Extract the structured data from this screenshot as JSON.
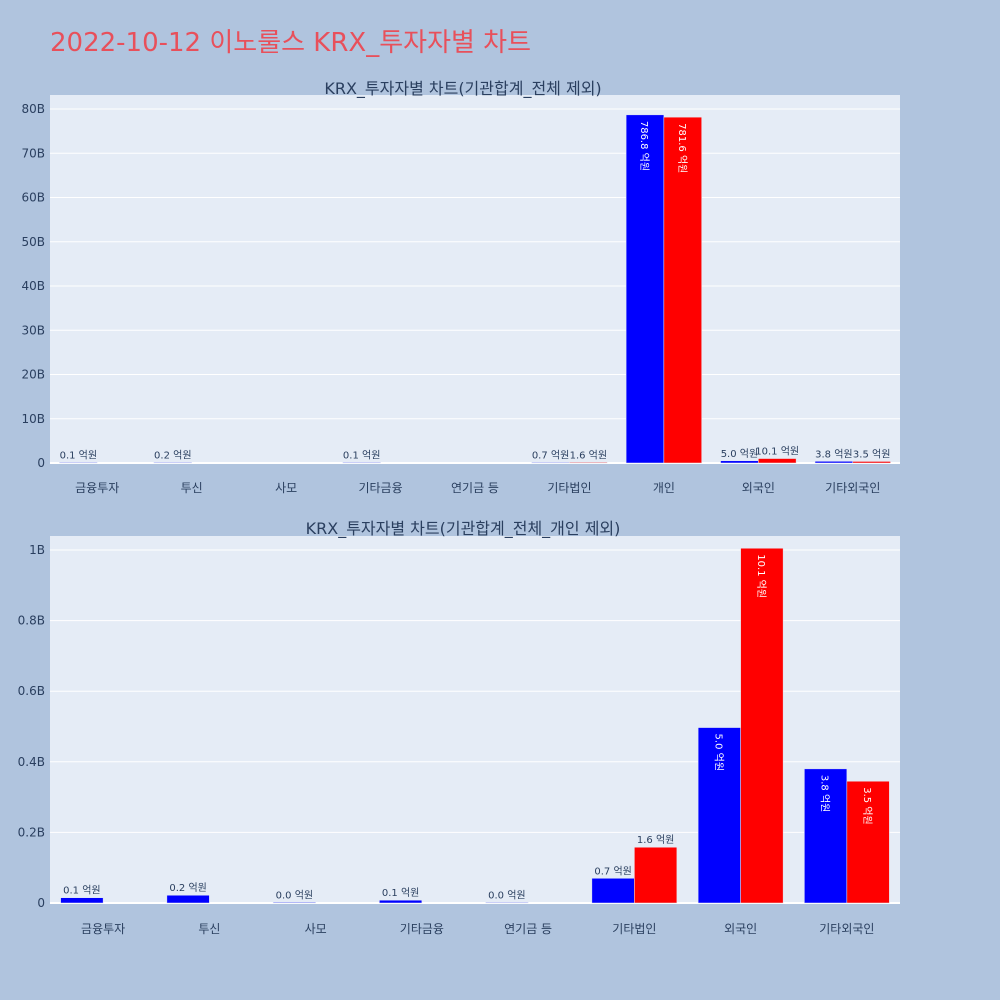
{
  "page": {
    "title": "2022-10-12 이노룰스 KRX_투자자별 차트"
  },
  "colors": {
    "background": "#b0c4de",
    "plot_bg": "#e5ecf6",
    "grid": "#ffffff",
    "title": "#e8505b",
    "text": "#2a3f5f",
    "buy": "#0000ff",
    "sell": "#ff0000"
  },
  "chart_data": [
    {
      "type": "bar",
      "title": "KRX_투자자별 차트(기관합계_전체 제외)",
      "categories": [
        "금융투자",
        "투신",
        "사모",
        "기타금융",
        "연기금 등",
        "기타법인",
        "개인",
        "외국인",
        "기타외국인"
      ],
      "ylim": [
        0,
        80000000000
      ],
      "yticks": [
        {
          "value": 0,
          "label": "0"
        },
        {
          "value": 10000000000,
          "label": "10B"
        },
        {
          "value": 20000000000,
          "label": "20B"
        },
        {
          "value": 30000000000,
          "label": "30B"
        },
        {
          "value": 40000000000,
          "label": "40B"
        },
        {
          "value": 50000000000,
          "label": "50B"
        },
        {
          "value": 60000000000,
          "label": "60B"
        },
        {
          "value": 70000000000,
          "label": "70B"
        },
        {
          "value": 80000000000,
          "label": "80B"
        }
      ],
      "grid": true,
      "series": [
        {
          "color": "#0000ff",
          "values": [
            10000000,
            20000000,
            null,
            10000000,
            null,
            70000000,
            78680000000,
            500000000,
            380000000
          ],
          "labels": [
            "0.1 억원",
            "0.2 억원",
            "",
            "0.1 억원",
            "",
            "0.7 억원",
            "786.8 억원",
            "5.0 억원",
            "3.8 억원"
          ]
        },
        {
          "color": "#ff0000",
          "values": [
            null,
            null,
            null,
            null,
            null,
            160000000,
            78160000000,
            1010000000,
            350000000
          ],
          "labels": [
            "",
            "",
            "",
            "",
            "",
            "1.6 억원",
            "781.6 억원",
            "10.1 억원",
            "3.5 억원"
          ]
        }
      ]
    },
    {
      "type": "bar",
      "title": "KRX_투자자별 차트(기관합계_전체_개인 제외)",
      "categories": [
        "금융투자",
        "투신",
        "사모",
        "기타금융",
        "연기금 등",
        "기타법인",
        "외국인",
        "기타외국인"
      ],
      "ylim": [
        0,
        1000000000
      ],
      "yticks": [
        {
          "value": 0,
          "label": "0"
        },
        {
          "value": 200000000,
          "label": "0.2B"
        },
        {
          "value": 400000000,
          "label": "0.4B"
        },
        {
          "value": 600000000,
          "label": "0.6B"
        },
        {
          "value": 800000000,
          "label": "0.8B"
        },
        {
          "value": 1000000000,
          "label": "1B"
        }
      ],
      "grid": true,
      "series": [
        {
          "color": "#0000ff",
          "values": [
            15000000,
            22000000,
            2000000,
            8000000,
            1000000,
            70000000,
            497000000,
            380000000
          ],
          "labels": [
            "0.1 억원",
            "0.2 억원",
            "0.0 억원",
            "0.1 억원",
            "0.0 억원",
            "0.7 억원",
            "5.0 억원",
            "3.8 억원"
          ]
        },
        {
          "color": "#ff0000",
          "values": [
            null,
            null,
            null,
            null,
            null,
            158000000,
            1005000000,
            345000000
          ],
          "labels": [
            "",
            "",
            "",
            "",
            "",
            "1.6 억원",
            "10.1 억원",
            "3.5 억원"
          ]
        }
      ]
    }
  ]
}
